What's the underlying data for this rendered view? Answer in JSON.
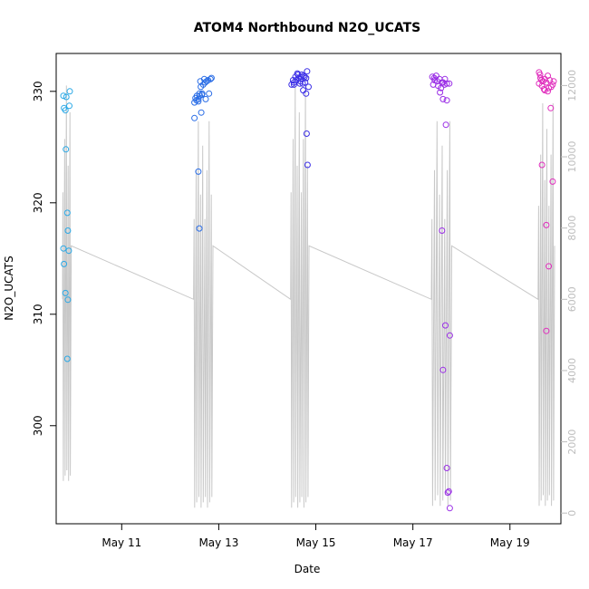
{
  "chart_data": {
    "type": "scatter",
    "title": "ATOM4 Northbound N2O_UCATS",
    "xlabel": "Date",
    "ylabel": "N2O_UCATS",
    "x_ticks": [
      {
        "day": 11,
        "label": "May 11"
      },
      {
        "day": 13,
        "label": "May 13"
      },
      {
        "day": 15,
        "label": "May 15"
      },
      {
        "day": 17,
        "label": "May 17"
      },
      {
        "day": 19,
        "label": "May 19"
      }
    ],
    "xlim": [
      9.65,
      20.05
    ],
    "ylim": [
      291.2,
      333.4
    ],
    "y_ticks": [
      300,
      310,
      320,
      330
    ],
    "y2lim": [
      -300,
      12900
    ],
    "y2_ticks": [
      0,
      2000,
      4000,
      6000,
      8000,
      10000,
      12000
    ],
    "series": [
      {
        "color": "#29a8e6",
        "points": [
          [
            9.8,
            329.6
          ],
          [
            9.86,
            329.5
          ],
          [
            9.93,
            330.0
          ],
          [
            9.81,
            328.5
          ],
          [
            9.84,
            328.3
          ],
          [
            9.92,
            328.7
          ],
          [
            9.85,
            324.8
          ],
          [
            9.88,
            319.1
          ],
          [
            9.89,
            317.5
          ],
          [
            9.8,
            315.9
          ],
          [
            9.91,
            315.7
          ],
          [
            9.81,
            314.5
          ],
          [
            9.84,
            311.9
          ],
          [
            9.89,
            311.3
          ],
          [
            9.88,
            306.0
          ]
        ]
      },
      {
        "color": "#2a6de6",
        "points": [
          [
            12.5,
            329.0
          ],
          [
            12.54,
            329.2
          ],
          [
            12.58,
            329.3
          ],
          [
            12.61,
            329.6
          ],
          [
            12.65,
            329.7
          ],
          [
            12.55,
            329.6
          ],
          [
            12.6,
            329.8
          ],
          [
            12.63,
            330.4
          ],
          [
            12.68,
            330.6
          ],
          [
            12.72,
            330.8
          ],
          [
            12.78,
            331.0
          ],
          [
            12.83,
            331.1
          ],
          [
            12.85,
            331.2
          ],
          [
            12.7,
            331.1
          ],
          [
            12.62,
            330.9
          ],
          [
            12.75,
            330.9
          ],
          [
            12.52,
            329.4
          ],
          [
            12.66,
            329.8
          ],
          [
            12.8,
            329.8
          ],
          [
            12.58,
            329.1
          ],
          [
            12.73,
            329.3
          ],
          [
            12.64,
            328.1
          ],
          [
            12.5,
            327.6
          ],
          [
            12.58,
            322.8
          ],
          [
            12.6,
            317.7
          ]
        ]
      },
      {
        "color": "#3b2ee6",
        "points": [
          [
            14.5,
            330.6
          ],
          [
            14.55,
            330.8
          ],
          [
            14.6,
            331.0
          ],
          [
            14.65,
            331.2
          ],
          [
            14.7,
            331.3
          ],
          [
            14.75,
            331.4
          ],
          [
            14.8,
            331.2
          ],
          [
            14.58,
            331.3
          ],
          [
            14.63,
            331.5
          ],
          [
            14.68,
            330.9
          ],
          [
            14.73,
            330.7
          ],
          [
            14.78,
            330.8
          ],
          [
            14.53,
            331.0
          ],
          [
            14.62,
            331.6
          ],
          [
            14.71,
            331.5
          ],
          [
            14.77,
            331.3
          ],
          [
            14.82,
            331.8
          ],
          [
            14.74,
            330.1
          ],
          [
            14.8,
            329.8
          ],
          [
            14.85,
            330.4
          ],
          [
            14.55,
            330.6
          ],
          [
            14.67,
            330.7
          ],
          [
            14.81,
            326.2
          ],
          [
            14.83,
            323.4
          ]
        ]
      },
      {
        "color": "#9a2ee6",
        "points": [
          [
            17.4,
            331.3
          ],
          [
            17.45,
            331.0
          ],
          [
            17.5,
            330.9
          ],
          [
            17.55,
            331.1
          ],
          [
            17.6,
            330.8
          ],
          [
            17.65,
            330.6
          ],
          [
            17.7,
            330.7
          ],
          [
            17.75,
            330.7
          ],
          [
            17.48,
            331.4
          ],
          [
            17.42,
            330.6
          ],
          [
            17.52,
            330.5
          ],
          [
            17.58,
            330.3
          ],
          [
            17.62,
            330.8
          ],
          [
            17.44,
            331.2
          ],
          [
            17.66,
            331.1
          ],
          [
            17.56,
            329.9
          ],
          [
            17.62,
            329.3
          ],
          [
            17.7,
            329.2
          ],
          [
            17.68,
            327.0
          ],
          [
            17.6,
            317.5
          ],
          [
            17.67,
            309.0
          ],
          [
            17.76,
            308.1
          ],
          [
            17.62,
            305.0
          ],
          [
            17.7,
            296.2
          ],
          [
            17.72,
            294.0
          ],
          [
            17.74,
            294.1
          ],
          [
            17.76,
            292.6
          ]
        ]
      },
      {
        "color": "#e02ebd",
        "points": [
          [
            19.6,
            331.7
          ],
          [
            19.62,
            331.5
          ],
          [
            19.65,
            331.0
          ],
          [
            19.68,
            330.9
          ],
          [
            19.72,
            331.1
          ],
          [
            19.75,
            330.8
          ],
          [
            19.78,
            331.4
          ],
          [
            19.82,
            331.0
          ],
          [
            19.88,
            330.6
          ],
          [
            19.6,
            330.7
          ],
          [
            19.7,
            330.2
          ],
          [
            19.78,
            330.0
          ],
          [
            19.85,
            330.4
          ],
          [
            19.63,
            331.2
          ],
          [
            19.9,
            330.9
          ],
          [
            19.66,
            330.5
          ],
          [
            19.72,
            330.1
          ],
          [
            19.8,
            330.3
          ],
          [
            19.84,
            328.5
          ],
          [
            19.66,
            323.4
          ],
          [
            19.88,
            321.9
          ],
          [
            19.75,
            318.0
          ],
          [
            19.8,
            314.3
          ],
          [
            19.75,
            308.5
          ]
        ]
      }
    ]
  }
}
